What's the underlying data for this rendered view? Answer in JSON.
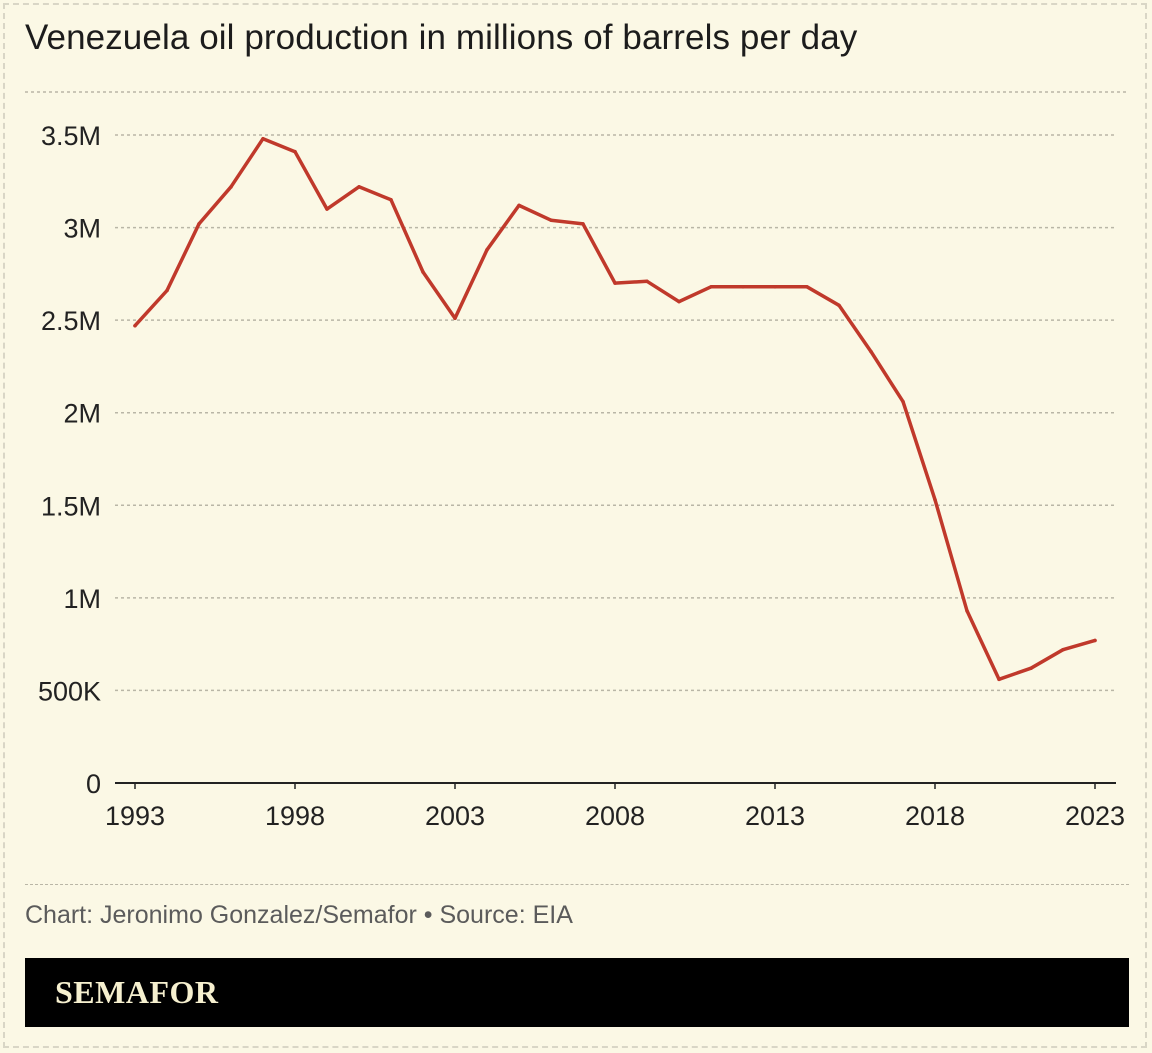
{
  "title": "Venezuela oil production in millions of barrels per day",
  "source": "Chart: Jeronimo Gonzalez/Semafor • Source: EIA",
  "brand": "SEMAFOR",
  "colors": {
    "line": "#c0392b",
    "background": "#fbf8e5",
    "grid": "#b9b6a6",
    "brand_bar": "#000000",
    "brand_text": "#f6f0cf"
  },
  "chart_data": {
    "type": "line",
    "title": "Venezuela oil production in millions of barrels per day",
    "xlabel": "",
    "ylabel": "",
    "x": [
      1993,
      1994,
      1995,
      1996,
      1997,
      1998,
      1999,
      2000,
      2001,
      2002,
      2003,
      2004,
      2005,
      2006,
      2007,
      2008,
      2009,
      2010,
      2011,
      2012,
      2013,
      2014,
      2015,
      2016,
      2017,
      2018,
      2019,
      2020,
      2021,
      2022,
      2023
    ],
    "series": [
      {
        "values": [
          2470000,
          2660000,
          3020000,
          3220000,
          3480000,
          3410000,
          3100000,
          3220000,
          3150000,
          2760000,
          2510000,
          2880000,
          3120000,
          3040000,
          3020000,
          2700000,
          2710000,
          2600000,
          2680000,
          2680000,
          2680000,
          2680000,
          2580000,
          2330000,
          2060000,
          1530000,
          930000,
          560000,
          620000,
          720000,
          770000
        ]
      }
    ],
    "xlim": [
      1993,
      2023
    ],
    "ylim": [
      0,
      3500000
    ],
    "x_ticks": [
      1993,
      1998,
      2003,
      2008,
      2013,
      2018,
      2023
    ],
    "x_tick_labels": [
      "1993",
      "1998",
      "2003",
      "2008",
      "2013",
      "2018",
      "2023"
    ],
    "y_ticks": [
      0,
      500000,
      1000000,
      1500000,
      2000000,
      2500000,
      3000000,
      3500000
    ],
    "y_tick_labels": [
      "0",
      "500K",
      "1M",
      "1.5M",
      "2M",
      "2.5M",
      "3M",
      "3.5M"
    ],
    "grid": true,
    "legend": "none"
  }
}
